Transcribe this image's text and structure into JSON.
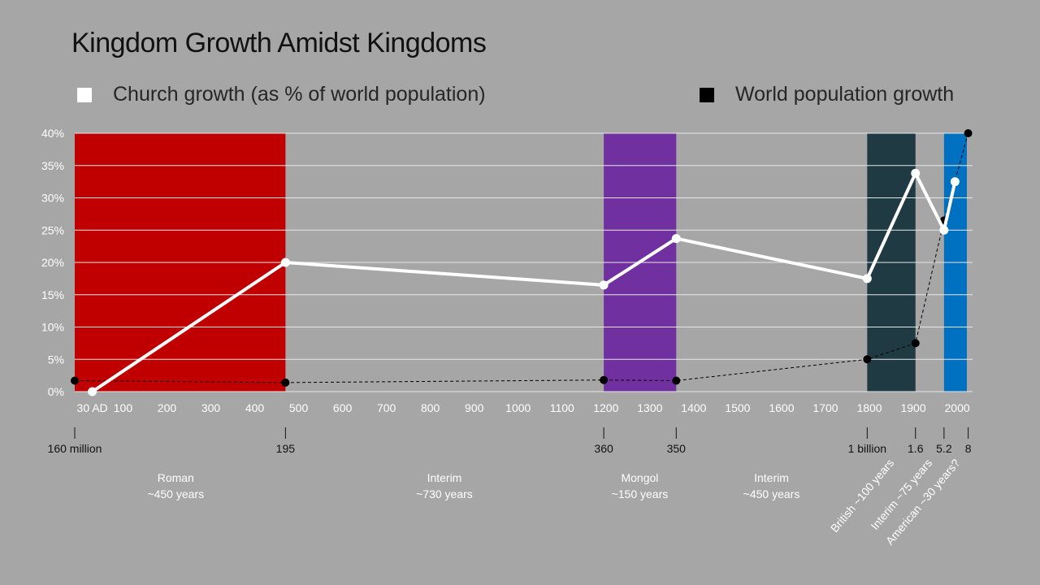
{
  "title": "Kingdom Growth Amidst Kingdoms",
  "legend": {
    "church": {
      "label": "Church growth (as % of world population)",
      "color": "#ffffff"
    },
    "world": {
      "label": "World population growth",
      "color": "#000000"
    }
  },
  "colors": {
    "background": "#a6a6a6",
    "grid": "#e6e6e6"
  },
  "chart_data": {
    "type": "line",
    "title": "Kingdom Growth Amidst Kingdoms",
    "xlim": [
      -10,
      2035
    ],
    "ylim": [
      0,
      40
    ],
    "grid": true,
    "legend_placement": "top",
    "x_ticks": [
      {
        "x": 30,
        "label": "30 AD"
      },
      {
        "x": 100,
        "label": "100"
      },
      {
        "x": 200,
        "label": "200"
      },
      {
        "x": 300,
        "label": "300"
      },
      {
        "x": 400,
        "label": "400"
      },
      {
        "x": 500,
        "label": "500"
      },
      {
        "x": 600,
        "label": "600"
      },
      {
        "x": 700,
        "label": "700"
      },
      {
        "x": 800,
        "label": "800"
      },
      {
        "x": 900,
        "label": "900"
      },
      {
        "x": 1000,
        "label": "1000"
      },
      {
        "x": 1100,
        "label": "1100"
      },
      {
        "x": 1200,
        "label": "1200"
      },
      {
        "x": 1300,
        "label": "1300"
      },
      {
        "x": 1400,
        "label": "1400"
      },
      {
        "x": 1500,
        "label": "1500"
      },
      {
        "x": 1600,
        "label": "1600"
      },
      {
        "x": 1700,
        "label": "1700"
      },
      {
        "x": 1800,
        "label": "1800"
      },
      {
        "x": 1900,
        "label": "1900"
      },
      {
        "x": 2000,
        "label": "2000"
      }
    ],
    "y_ticks": [
      {
        "y": 0,
        "label": "0%"
      },
      {
        "y": 5,
        "label": "5%"
      },
      {
        "y": 10,
        "label": "10%"
      },
      {
        "y": 15,
        "label": "15%"
      },
      {
        "y": 20,
        "label": "20%"
      },
      {
        "y": 25,
        "label": "25%"
      },
      {
        "y": 30,
        "label": "30%"
      },
      {
        "y": 35,
        "label": "35%"
      },
      {
        "y": 40,
        "label": "40%"
      }
    ],
    "bands": [
      {
        "x0": -10,
        "x1": 470,
        "color": "#c00000"
      },
      {
        "x0": 1195,
        "x1": 1360,
        "color": "#7030a0"
      },
      {
        "x0": 1795,
        "x1": 1905,
        "color": "#203a44"
      },
      {
        "x0": 1970,
        "x1": 2022,
        "color": "#0070c0"
      }
    ],
    "series": [
      {
        "name": "Church growth (as % of world population)",
        "color": "#ffffff",
        "style": "solid",
        "points": [
          [
            30,
            0
          ],
          [
            470,
            20
          ],
          [
            1195,
            16.5
          ],
          [
            1360,
            23.7
          ],
          [
            1795,
            17.5
          ],
          [
            1905,
            33.8
          ],
          [
            1970,
            25
          ],
          [
            1995,
            32.5
          ]
        ]
      },
      {
        "name": "World population growth",
        "color": "#000000",
        "style": "dashed",
        "points": [
          [
            -10,
            1.7
          ],
          [
            470,
            1.4
          ],
          [
            1195,
            1.8
          ],
          [
            1360,
            1.7
          ],
          [
            1795,
            5
          ],
          [
            1905,
            7.5
          ],
          [
            1970,
            26.5
          ],
          [
            2025,
            40
          ]
        ]
      }
    ],
    "population_markers": [
      {
        "x": -10,
        "label": "160 million"
      },
      {
        "x": 470,
        "label": "195"
      },
      {
        "x": 1195,
        "label": "360"
      },
      {
        "x": 1360,
        "label": "350"
      },
      {
        "x": 1795,
        "label": "1 billion"
      },
      {
        "x": 1905,
        "label": "1.6"
      },
      {
        "x": 1970,
        "label": "5.2"
      },
      {
        "x": 2025,
        "label": "8"
      }
    ],
    "periods": [
      {
        "name": "Roman",
        "duration": "~450 years",
        "x": 220,
        "rotated": false
      },
      {
        "name": "Interim",
        "duration": "~730 years",
        "x": 832,
        "rotated": false
      },
      {
        "name": "Mongol",
        "duration": "~150 years",
        "x": 1277,
        "rotated": false
      },
      {
        "name": "Interim",
        "duration": "~450 years",
        "x": 1577,
        "rotated": false
      },
      {
        "text": "British ~100 years",
        "x": 1850,
        "rotated": true
      },
      {
        "text": "Interim ~75 years",
        "x": 1937,
        "rotated": true
      },
      {
        "text": "American ~30 years?",
        "x": 2000,
        "rotated": true
      }
    ]
  }
}
